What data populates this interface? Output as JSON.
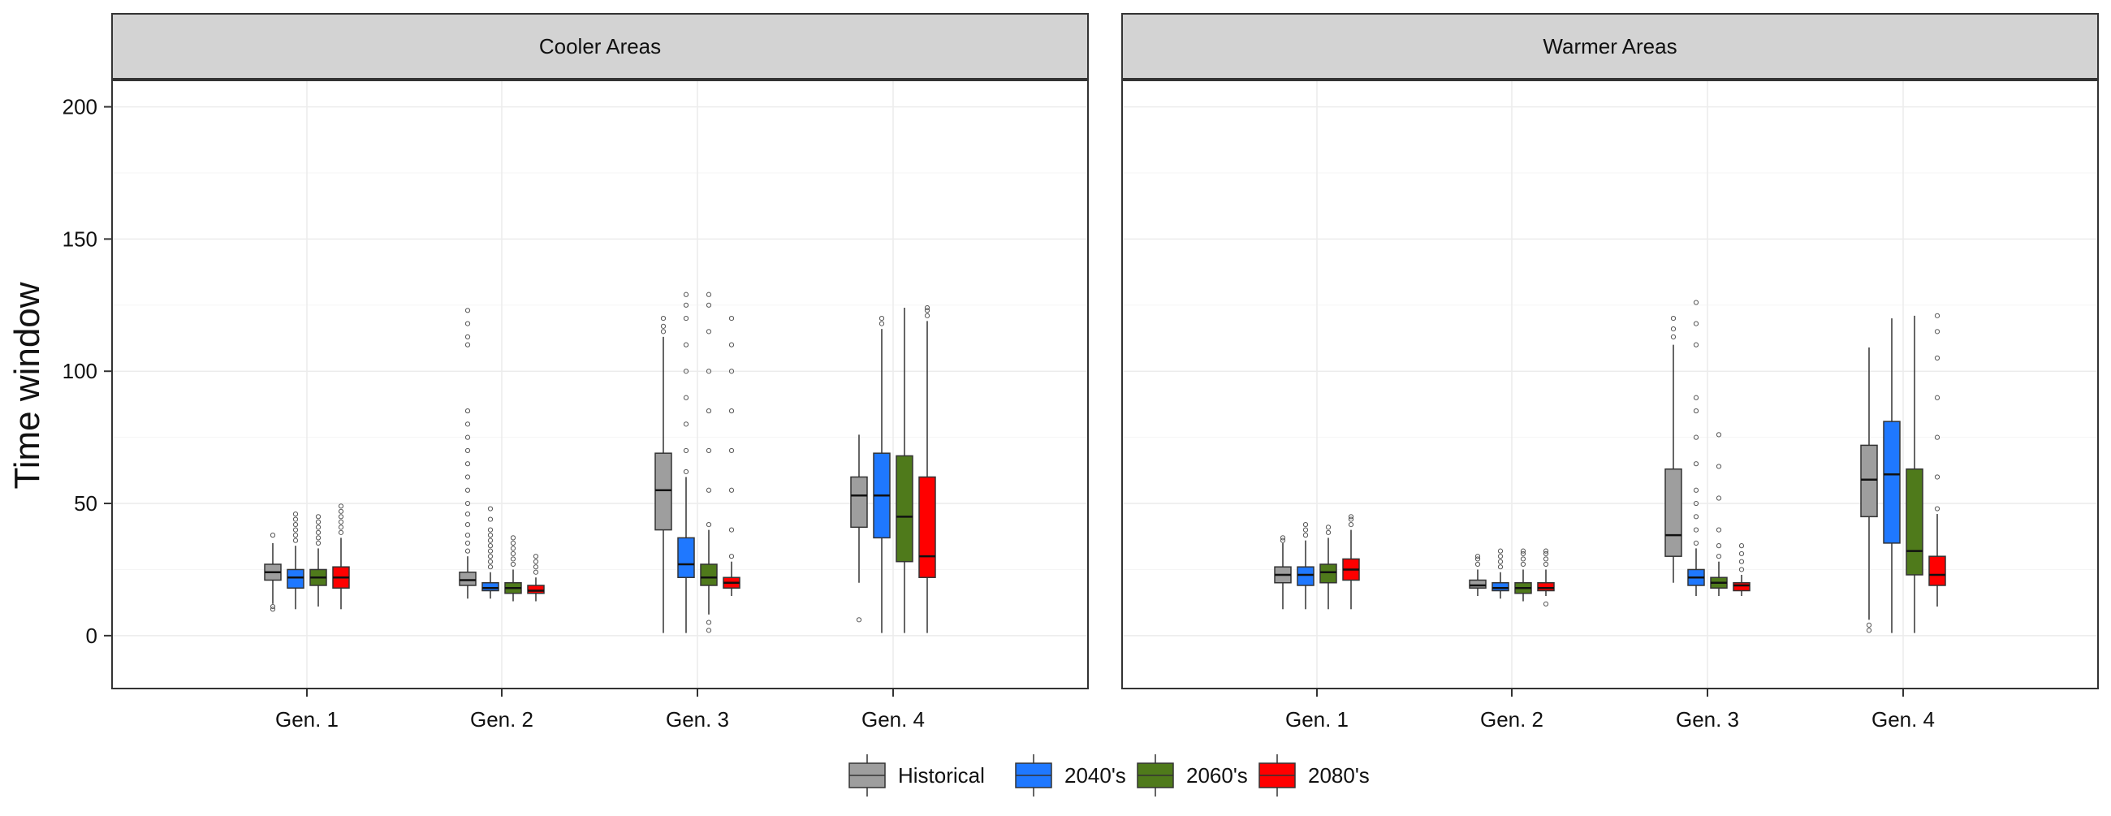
{
  "chart_data": {
    "type": "boxplot",
    "ylabel": "Time window",
    "ylim": [
      -20,
      210
    ],
    "yticks": [
      0,
      50,
      100,
      150,
      200
    ],
    "grid": true,
    "categories": [
      "Gen. 1",
      "Gen. 2",
      "Gen. 3",
      "Gen. 4"
    ],
    "legend_position": "bottom",
    "series": [
      {
        "name": "Historical",
        "color": "#9E9E9E"
      },
      {
        "name": "2040's",
        "color": "#1F78FF"
      },
      {
        "name": "2060's",
        "color": "#4F7A1B"
      },
      {
        "name": "2080's",
        "color": "#FF0000"
      }
    ],
    "panels": [
      {
        "title": "Cooler Areas",
        "boxes": [
          [
            {
              "min": 12,
              "q1": 21,
              "median": 24,
              "q3": 27,
              "max": 35,
              "outliers": [
                10,
                11,
                38
              ]
            },
            {
              "min": 10,
              "q1": 18,
              "median": 22,
              "q3": 25,
              "max": 34,
              "outliers": [
                36,
                38,
                40,
                42,
                44,
                46
              ]
            },
            {
              "min": 11,
              "q1": 19,
              "median": 22,
              "q3": 25,
              "max": 33,
              "outliers": [
                35,
                37,
                39,
                41,
                43,
                45
              ]
            },
            {
              "min": 10,
              "q1": 18,
              "median": 22,
              "q3": 26,
              "max": 37,
              "outliers": [
                39,
                41,
                43,
                45,
                47,
                49
              ]
            }
          ],
          [
            {
              "min": 14,
              "q1": 19,
              "median": 21,
              "q3": 24,
              "max": 30,
              "outliers": [
                32,
                35,
                38,
                42,
                46,
                50,
                55,
                60,
                65,
                70,
                75,
                80,
                85,
                110,
                113,
                118,
                123
              ]
            },
            {
              "min": 14,
              "q1": 17,
              "median": 18,
              "q3": 20,
              "max": 24,
              "outliers": [
                26,
                28,
                30,
                32,
                34,
                36,
                38,
                40,
                44,
                48
              ]
            },
            {
              "min": 13,
              "q1": 16,
              "median": 18,
              "q3": 20,
              "max": 25,
              "outliers": [
                27,
                29,
                31,
                33,
                35,
                37
              ]
            },
            {
              "min": 13,
              "q1": 16,
              "median": 17,
              "q3": 19,
              "max": 22,
              "outliers": [
                24,
                26,
                28,
                30
              ]
            }
          ],
          [
            {
              "min": 1,
              "q1": 40,
              "median": 55,
              "q3": 69,
              "max": 113,
              "outliers": [
                115,
                117,
                120
              ]
            },
            {
              "min": 1,
              "q1": 22,
              "median": 27,
              "q3": 37,
              "max": 60,
              "outliers": [
                62,
                70,
                80,
                90,
                100,
                110,
                120,
                125,
                129
              ]
            },
            {
              "min": 8,
              "q1": 19,
              "median": 22,
              "q3": 27,
              "max": 40,
              "outliers": [
                2,
                5,
                42,
                55,
                70,
                85,
                100,
                115,
                125,
                129
              ]
            },
            {
              "min": 15,
              "q1": 18,
              "median": 20,
              "q3": 22,
              "max": 28,
              "outliers": [
                30,
                40,
                55,
                70,
                85,
                100,
                110,
                120
              ]
            }
          ],
          [
            {
              "min": 20,
              "q1": 41,
              "median": 53,
              "q3": 60,
              "max": 76,
              "outliers": [
                6
              ]
            },
            {
              "min": 1,
              "q1": 37,
              "median": 53,
              "q3": 69,
              "max": 116,
              "outliers": [
                118,
                120
              ]
            },
            {
              "min": 1,
              "q1": 28,
              "median": 45,
              "q3": 68,
              "max": 124,
              "outliers": []
            },
            {
              "min": 1,
              "q1": 22,
              "median": 30,
              "q3": 60,
              "max": 119,
              "outliers": [
                121,
                123,
                124
              ]
            }
          ]
        ]
      },
      {
        "title": "Warmer Areas",
        "boxes": [
          [
            {
              "min": 10,
              "q1": 20,
              "median": 23,
              "q3": 26,
              "max": 35,
              "outliers": [
                36,
                37
              ]
            },
            {
              "min": 10,
              "q1": 19,
              "median": 23,
              "q3": 26,
              "max": 36,
              "outliers": [
                38,
                40,
                42
              ]
            },
            {
              "min": 10,
              "q1": 20,
              "median": 24,
              "q3": 27,
              "max": 37,
              "outliers": [
                39,
                41
              ]
            },
            {
              "min": 10,
              "q1": 21,
              "median": 25,
              "q3": 29,
              "max": 40,
              "outliers": [
                42,
                44,
                45
              ]
            }
          ],
          [
            {
              "min": 15,
              "q1": 18,
              "median": 19,
              "q3": 21,
              "max": 25,
              "outliers": [
                27,
                29,
                30
              ]
            },
            {
              "min": 14,
              "q1": 17,
              "median": 18,
              "q3": 20,
              "max": 24,
              "outliers": [
                26,
                28,
                30,
                32
              ]
            },
            {
              "min": 13,
              "q1": 16,
              "median": 18,
              "q3": 20,
              "max": 25,
              "outliers": [
                27,
                29,
                31,
                32
              ]
            },
            {
              "min": 15,
              "q1": 17,
              "median": 18,
              "q3": 20,
              "max": 25,
              "outliers": [
                12,
                27,
                29,
                31,
                32
              ]
            }
          ],
          [
            {
              "min": 20,
              "q1": 30,
              "median": 38,
              "q3": 63,
              "max": 110,
              "outliers": [
                113,
                116,
                120
              ]
            },
            {
              "min": 15,
              "q1": 19,
              "median": 22,
              "q3": 25,
              "max": 33,
              "outliers": [
                35,
                40,
                45,
                50,
                55,
                65,
                75,
                85,
                90,
                110,
                118,
                126
              ]
            },
            {
              "min": 15,
              "q1": 18,
              "median": 20,
              "q3": 22,
              "max": 28,
              "outliers": [
                30,
                34,
                40,
                52,
                64,
                76
              ]
            },
            {
              "min": 15,
              "q1": 17,
              "median": 19,
              "q3": 20,
              "max": 23,
              "outliers": [
                25,
                28,
                31,
                34
              ]
            }
          ],
          [
            {
              "min": 6,
              "q1": 45,
              "median": 59,
              "q3": 72,
              "max": 109,
              "outliers": [
                2,
                4
              ]
            },
            {
              "min": 1,
              "q1": 35,
              "median": 61,
              "q3": 81,
              "max": 120,
              "outliers": []
            },
            {
              "min": 1,
              "q1": 23,
              "median": 32,
              "q3": 63,
              "max": 121,
              "outliers": []
            },
            {
              "min": 11,
              "q1": 19,
              "median": 23,
              "q3": 30,
              "max": 46,
              "outliers": [
                48,
                60,
                75,
                90,
                105,
                115,
                121
              ]
            }
          ]
        ]
      }
    ]
  }
}
